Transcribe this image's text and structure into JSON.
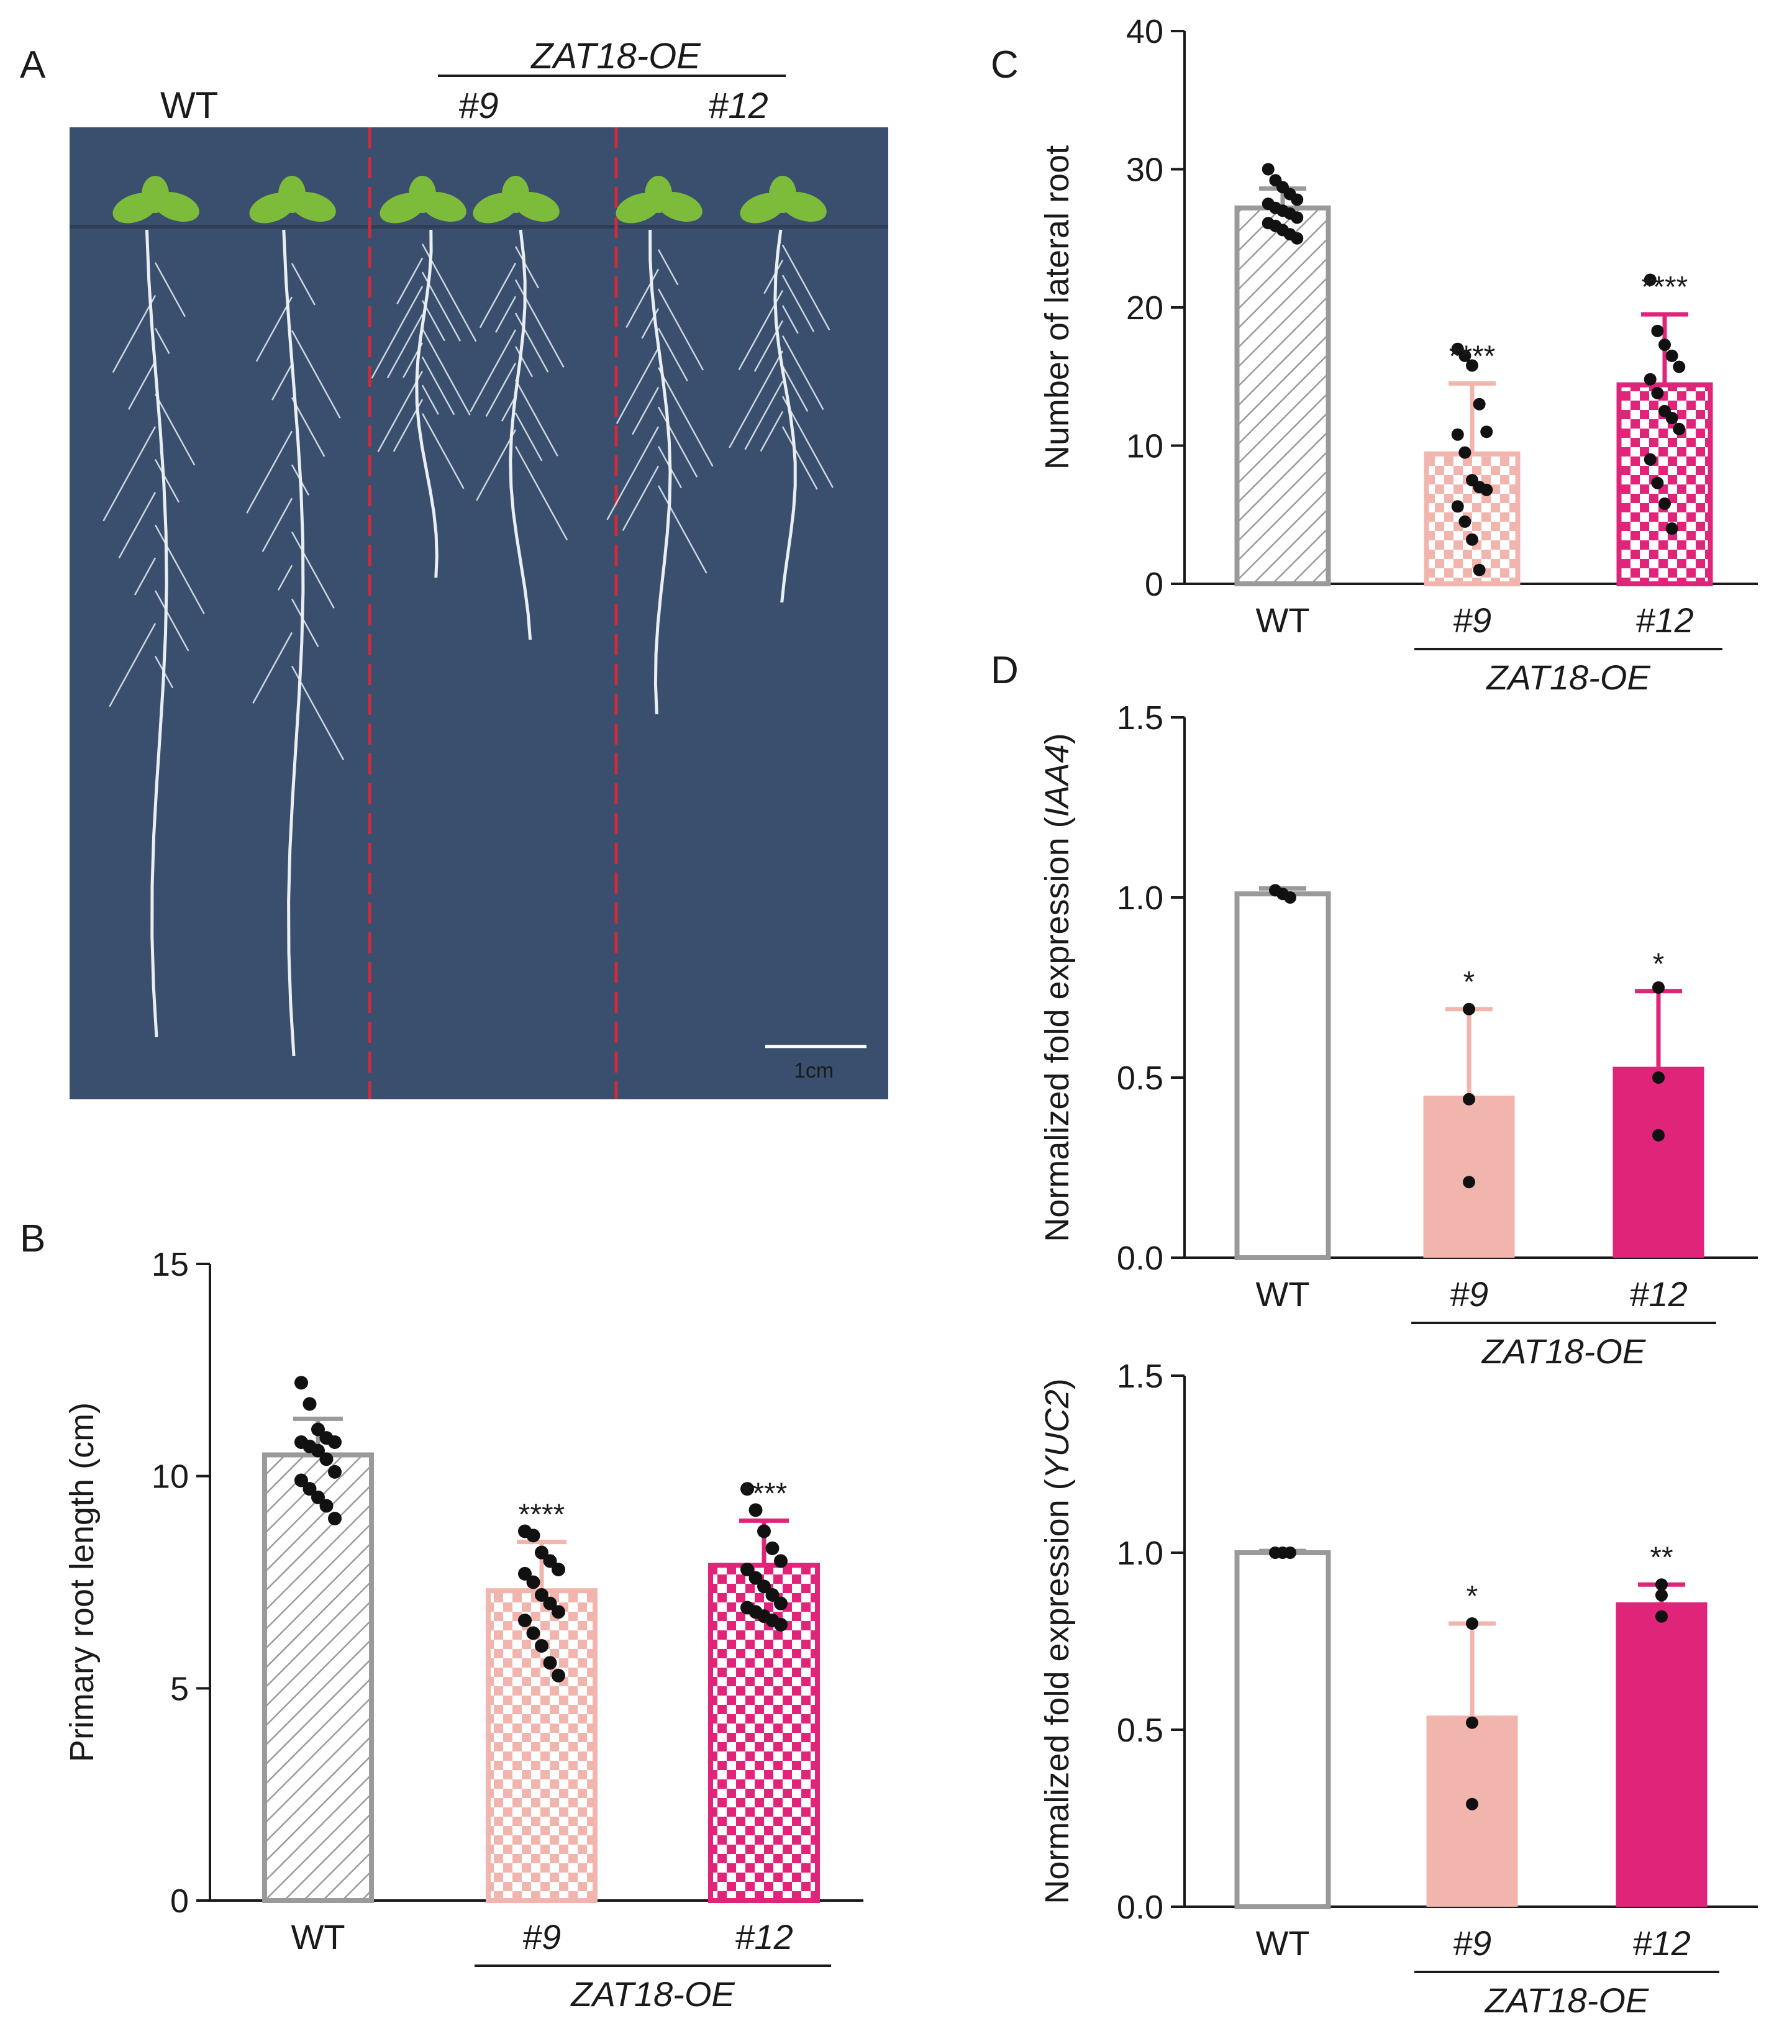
{
  "panel_letters": {
    "a": "A",
    "b": "B",
    "c": "C",
    "d": "D"
  },
  "photo": {
    "labels": {
      "wt": "WT",
      "genotype": "ZAT18-OE",
      "line9": "#9",
      "line12": "#12"
    },
    "scale_bar": "1cm",
    "colors": {
      "background": "#3a4e6e",
      "divider": "#d12a3a",
      "leaf": "#7dbb3a",
      "root": "#e8eef2"
    }
  },
  "colors": {
    "wt": "#9a9a9a",
    "line9": "#f2b5ae",
    "line12": "#e0247a",
    "dot": "#111111"
  },
  "chart_data": [
    {
      "id": "B",
      "type": "bar",
      "title": "",
      "xlabel": "",
      "ylabel": "Primary root length (cm)",
      "ylim": [
        0,
        15
      ],
      "yticks": [
        "0",
        "5",
        "10",
        "15"
      ],
      "categories": [
        "WT",
        "#9",
        "#12"
      ],
      "group_label": "ZAT18-OE",
      "values": [
        10.5,
        7.3,
        7.9
      ],
      "errors": [
        0.85,
        1.15,
        1.05
      ],
      "significance": [
        "",
        "****",
        "****"
      ],
      "points": [
        [
          12.2,
          11.7,
          11.1,
          10.9,
          10.8,
          10.8,
          10.7,
          10.6,
          10.4,
          10.1,
          9.9,
          9.7,
          9.5,
          9.3,
          9.0
        ],
        [
          8.7,
          8.6,
          8.2,
          8.0,
          7.8,
          7.7,
          7.5,
          7.2,
          7.0,
          6.8,
          6.6,
          6.3,
          6.0,
          5.6,
          5.3
        ],
        [
          9.7,
          9.2,
          8.7,
          8.3,
          8.0,
          7.8,
          7.6,
          7.4,
          7.2,
          7.0,
          6.9,
          6.8,
          6.7,
          6.6,
          6.5
        ]
      ],
      "patterns": [
        "hatch",
        "check-light",
        "check-dark"
      ]
    },
    {
      "id": "C",
      "type": "bar",
      "title": "",
      "xlabel": "",
      "ylabel": "Number of lateral root",
      "ylim": [
        0,
        40
      ],
      "yticks": [
        "0",
        "10",
        "20",
        "30",
        "40"
      ],
      "categories": [
        "WT",
        "#9",
        "#12"
      ],
      "group_label": "ZAT18-OE",
      "values": [
        27.2,
        9.4,
        14.4
      ],
      "errors": [
        1.4,
        5.1,
        5.1
      ],
      "significance": [
        "",
        "****",
        "****"
      ],
      "points": [
        [
          30.0,
          29.2,
          28.7,
          28.2,
          27.8,
          27.5,
          27.2,
          27.0,
          26.8,
          26.5,
          26.1,
          25.9,
          25.6,
          25.3,
          25.0
        ],
        [
          17.0,
          16.5,
          15.8,
          13.0,
          11.0,
          10.8,
          9.5,
          7.5,
          7.0,
          6.8,
          5.6,
          4.5,
          3.2,
          1.0
        ],
        [
          22.0,
          18.3,
          17.3,
          16.5,
          15.7,
          14.8,
          13.8,
          12.5,
          12.0,
          11.2,
          9.0,
          7.3,
          5.8,
          4.0
        ]
      ],
      "patterns": [
        "hatch",
        "check-light",
        "check-dark"
      ]
    },
    {
      "id": "D-IAA4",
      "type": "bar",
      "title": "",
      "xlabel": "",
      "ylabel": "Normalized fold expression",
      "ylabel_gene": "IAA4",
      "ylim": [
        0,
        1.5
      ],
      "yticks": [
        "0.0",
        "0.5",
        "1.0",
        "1.5"
      ],
      "categories": [
        "WT",
        "#9",
        "#12"
      ],
      "group_label": "ZAT18-OE",
      "values": [
        1.01,
        0.45,
        0.53
      ],
      "errors": [
        0.015,
        0.24,
        0.21
      ],
      "significance": [
        "",
        "*",
        "*"
      ],
      "points": [
        [
          1.02,
          1.01,
          1.0
        ],
        [
          0.69,
          0.44,
          0.21
        ],
        [
          0.75,
          0.5,
          0.34
        ]
      ],
      "patterns": [
        "open",
        "solid",
        "solid"
      ]
    },
    {
      "id": "D-YUC2",
      "type": "bar",
      "title": "",
      "xlabel": "",
      "ylabel": "Normalized fold expression",
      "ylabel_gene": "YUC2",
      "ylim": [
        0,
        1.5
      ],
      "yticks": [
        "0.0",
        "0.5",
        "1.0",
        "1.5"
      ],
      "categories": [
        "WT",
        "#9",
        "#12"
      ],
      "group_label": "ZAT18-OE",
      "values": [
        1.0,
        0.54,
        0.86
      ],
      "errors": [
        0.005,
        0.26,
        0.05
      ],
      "significance": [
        "",
        "*",
        "**"
      ],
      "points": [
        [
          1.0,
          1.0,
          1.0
        ],
        [
          0.8,
          0.52,
          0.29
        ],
        [
          0.91,
          0.88,
          0.82
        ]
      ],
      "patterns": [
        "open",
        "solid",
        "solid"
      ]
    }
  ]
}
